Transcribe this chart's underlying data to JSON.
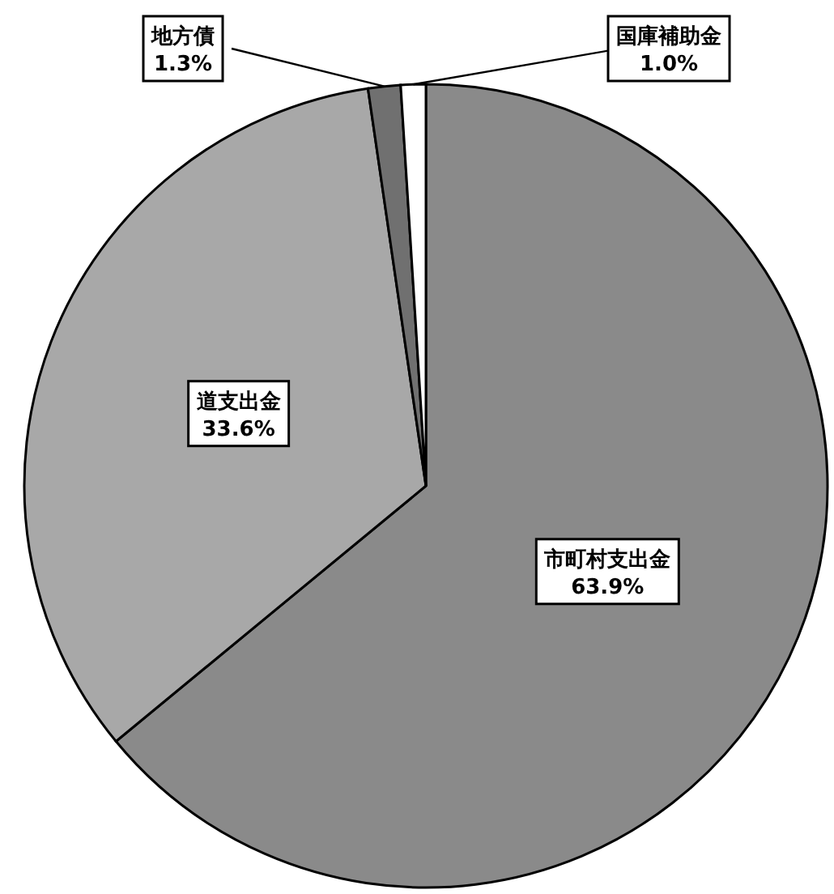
{
  "chart_data": {
    "type": "pie",
    "categories": [
      "市町村支出金",
      "道支出金",
      "地方債",
      "国庫補助金"
    ],
    "values": [
      63.9,
      33.6,
      1.3,
      1.0
    ],
    "value_labels": [
      "63.9%",
      "33.6%",
      "1.3%",
      "1.0%"
    ],
    "colors": [
      "#8a8a8a",
      "#a8a8a8",
      "#707070",
      "#ffffff"
    ]
  }
}
